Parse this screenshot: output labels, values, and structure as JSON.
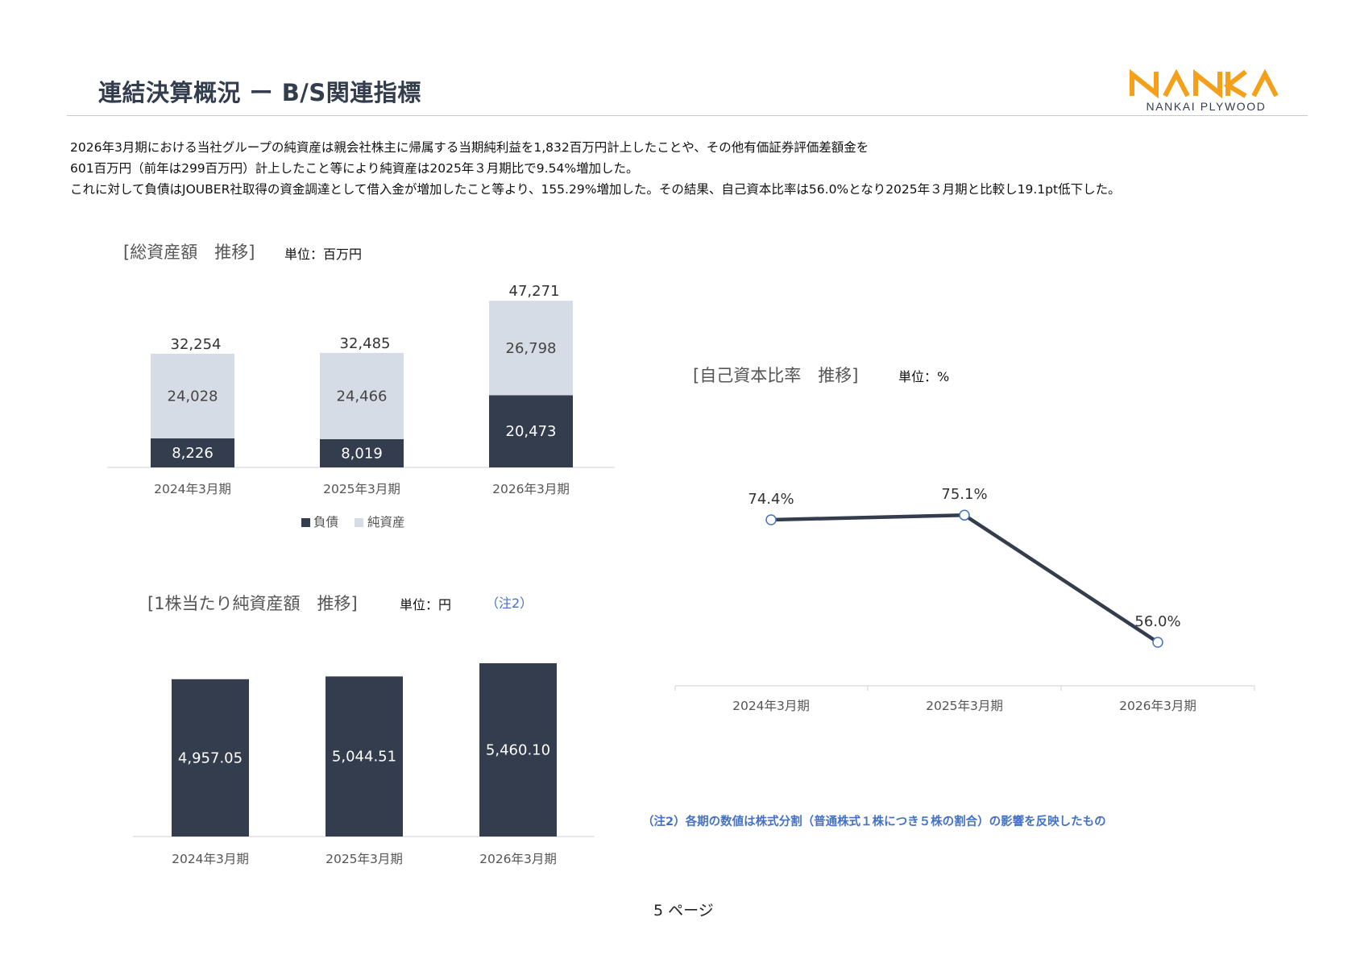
{
  "header": {
    "title": "連結決算概況 ー B/S関連指標",
    "logo_sub": "NANKAI PLYWOOD"
  },
  "intro": [
    "2026年3月期における当社グループの純資産は親会社株主に帰属する当期純利益を1,832百万円計上したことや、その他有価証券評価差額金を",
    "601百万円（前年は299百万円）計上したこと等により純資産は2025年３月期比で9.54%増加した。",
    "これに対して負債はJOUBER社取得の資金調達として借入金が増加したこと等より、155.29%増加した。その結果、自己資本比率は56.0%となり2025年３月期と比較し19.1pt低下した。"
  ],
  "sections": {
    "total_assets": {
      "title": "[総資産額　推移]",
      "unit": "単位：百万円"
    },
    "equity_ratio": {
      "title": "[自己資本比率　推移]",
      "unit": "単位：%"
    },
    "bps": {
      "title": "[1株当たり純資産額　推移]",
      "unit": "単位：円",
      "note_ref": "（注2）"
    }
  },
  "footnote": "（注2）各期の数値は株式分割（普通株式１株につき５株の割合）の影響を反映したもの",
  "page_number": "5 ページ",
  "colors": {
    "navy": "#333d4e",
    "light": "#d6dce5",
    "accent": "#4472c4",
    "logo_orange": "#f5a01a"
  },
  "chart_data": [
    {
      "id": "total-assets",
      "type": "bar",
      "stacked": true,
      "categories": [
        "2024年3月期",
        "2025年3月期",
        "2026年3月期"
      ],
      "series": [
        {
          "name": "負債",
          "values": [
            8226,
            8019,
            20473
          ],
          "labels": [
            "8,226",
            "8,019",
            "20,473"
          ],
          "color": "#333d4e"
        },
        {
          "name": "純資産",
          "values": [
            24028,
            24466,
            26798
          ],
          "labels": [
            "24,028",
            "24,466",
            "26,798"
          ],
          "color": "#d6dce5"
        }
      ],
      "totals": [
        32254,
        32485,
        47271
      ],
      "total_labels": [
        "32,254",
        "32,485",
        "47,271"
      ],
      "legend": "bottom",
      "ylim": [
        0,
        48000
      ]
    },
    {
      "id": "equity-ratio",
      "type": "line",
      "categories": [
        "2024年3月期",
        "2025年3月期",
        "2026年3月期"
      ],
      "values": [
        74.4,
        75.1,
        56.0
      ],
      "labels": [
        "74.4%",
        "75.1%",
        "56.0%"
      ],
      "ylim": [
        45,
        80
      ]
    },
    {
      "id": "bps",
      "type": "bar",
      "categories": [
        "2024年3月期",
        "2025年3月期",
        "2026年3月期"
      ],
      "values": [
        4957.05,
        5044.51,
        5460.1
      ],
      "labels": [
        "4,957.05",
        "5,044.51",
        "5,460.10"
      ],
      "ylim": [
        0,
        6000
      ]
    }
  ]
}
